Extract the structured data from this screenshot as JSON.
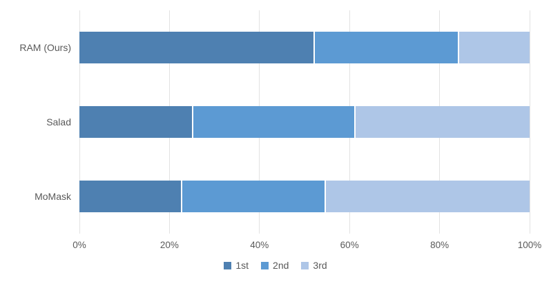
{
  "chart_data": {
    "type": "bar",
    "variant": "horizontal-stacked",
    "title": "",
    "xlabel": "",
    "ylabel": "",
    "xlim": [
      0,
      100
    ],
    "x_tick_labels": [
      "0%",
      "20%",
      "40%",
      "60%",
      "80%",
      "100%"
    ],
    "x_tick_values": [
      0,
      20,
      40,
      60,
      80,
      100
    ],
    "grid": "vertical",
    "categories": [
      "RAM (Ours)",
      "Salad",
      "MoMask"
    ],
    "series": [
      {
        "name": "1st",
        "color": "#4E80B1",
        "values": [
          52,
          25,
          22.5
        ]
      },
      {
        "name": "2nd",
        "color": "#5C9AD3",
        "values": [
          32,
          36,
          32
        ]
      },
      {
        "name": "3rd",
        "color": "#AEC6E7",
        "values": [
          16,
          39,
          45.5
        ]
      }
    ],
    "legend": {
      "position": "bottom",
      "entries": [
        "1st",
        "2nd",
        "3rd"
      ]
    },
    "colors": {
      "text": "#595959",
      "gridline": "#e2e2e2",
      "background": "#ffffff"
    }
  }
}
